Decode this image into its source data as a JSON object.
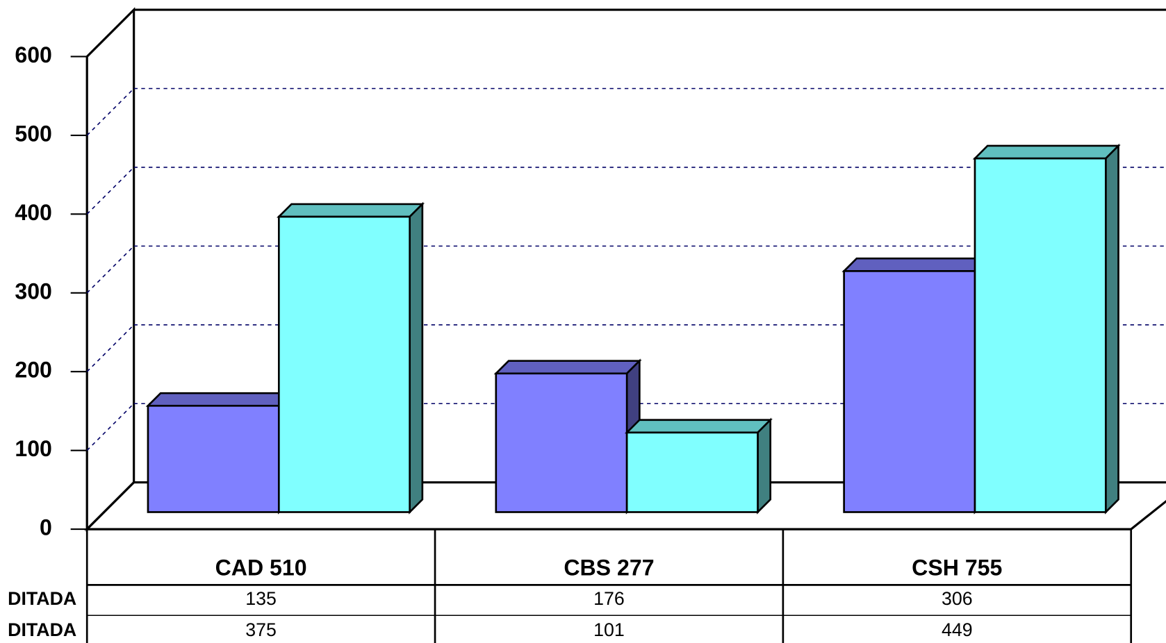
{
  "chart_data": {
    "type": "bar3d",
    "categories": [
      "CAD 510",
      "CBS 277",
      "CSH 755"
    ],
    "series": [
      {
        "name": "DITADA",
        "color": "#8080ff",
        "values": [
          135,
          176,
          306
        ]
      },
      {
        "name": "DITADA",
        "color": "#80ffff",
        "values": [
          375,
          101,
          449
        ]
      }
    ],
    "ylim": [
      0,
      600
    ],
    "yticks": [
      0,
      100,
      200,
      300,
      400,
      500,
      600
    ],
    "grid": true
  }
}
